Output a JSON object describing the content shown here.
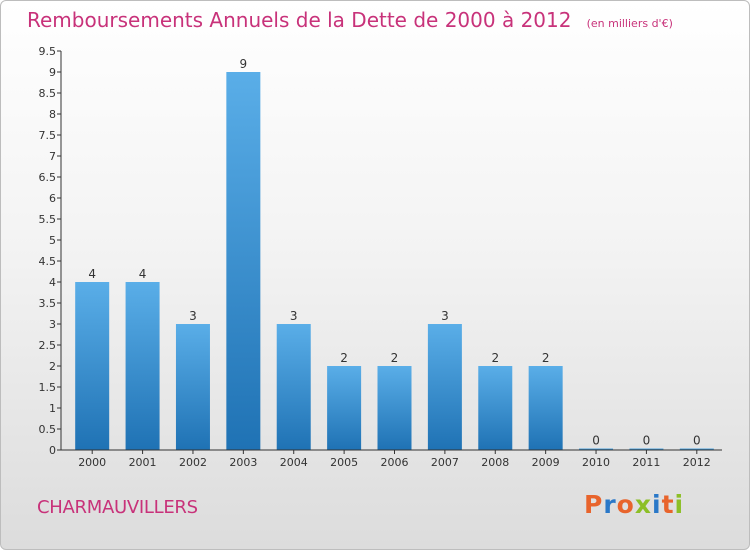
{
  "chart_data": {
    "type": "bar",
    "title": "Remboursements Annuels de la Dette de 2000 à 2012",
    "unit": "(en milliers d'€)",
    "xlabel": "",
    "ylabel": "",
    "categories": [
      "2000",
      "2001",
      "2002",
      "2003",
      "2004",
      "2005",
      "2006",
      "2007",
      "2008",
      "2009",
      "2010",
      "2011",
      "2012"
    ],
    "values": [
      4,
      4,
      3,
      9,
      3,
      2,
      2,
      3,
      2,
      2,
      0,
      0,
      0
    ],
    "data_labels": [
      "4",
      "4",
      "3",
      "9",
      "3",
      "2",
      "2",
      "3",
      "2",
      "2",
      "0",
      "0",
      "0"
    ],
    "y_ticks": [
      0,
      0.5,
      1,
      1.5,
      2,
      2.5,
      3,
      3.5,
      4,
      4.5,
      5,
      5.5,
      6,
      6.5,
      7,
      7.5,
      8,
      8.5,
      9,
      9.5
    ],
    "y_tick_labels": [
      "0",
      "0.5",
      "1",
      "1.5",
      "2",
      "2.5",
      "3",
      "3.5",
      "4",
      "4.5",
      "5",
      "5.5",
      "6",
      "6.5",
      "7",
      "7.5",
      "8",
      "8.5",
      "9",
      "9.5"
    ],
    "ylim": [
      0,
      9.5
    ],
    "grid": false,
    "legend": "none",
    "colors": {
      "bar_top": "#5aaee8",
      "bar_bottom": "#1f72b4",
      "title": "#c8327a",
      "axis": "#333333"
    }
  },
  "footer": {
    "commune": "CHARMAUVILLERS",
    "logo_text": "Proxiti",
    "logo_colors": [
      "#e8642c",
      "#2a78c8",
      "#e8642c",
      "#8cbf26",
      "#2a78c8",
      "#e8642c",
      "#8cbf26"
    ]
  }
}
